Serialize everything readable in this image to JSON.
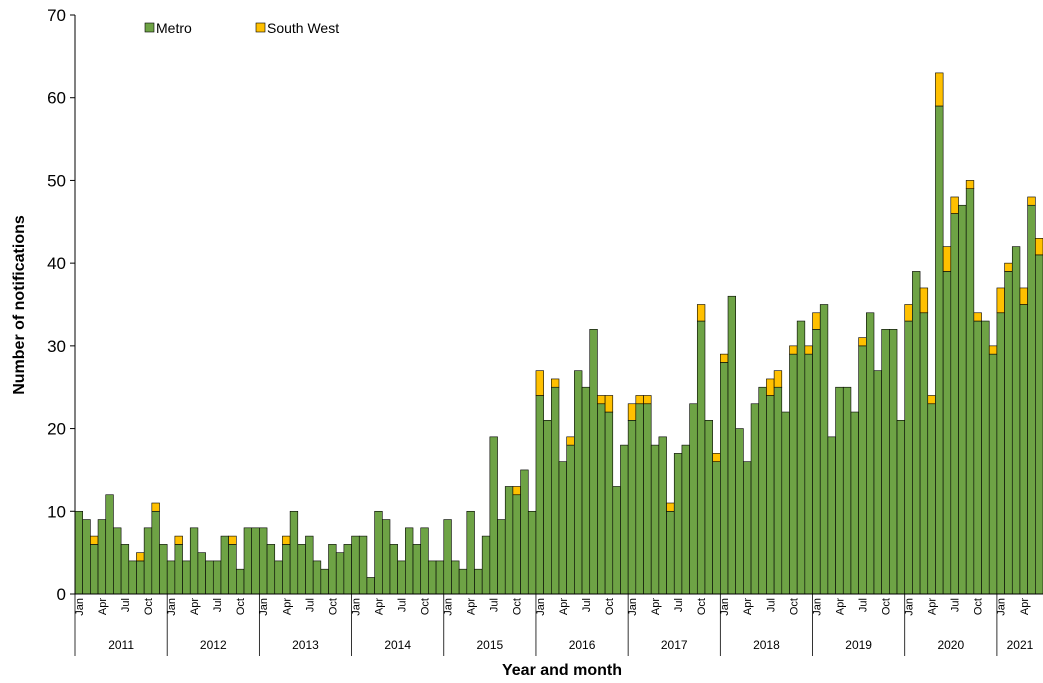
{
  "chart_data": {
    "type": "stacked-bar",
    "x_label": "Year and month",
    "y_label": "Number of notifications",
    "categories": [
      "Jan",
      null,
      null,
      "Apr",
      null,
      null,
      "Jul",
      null,
      null,
      "Oct",
      null,
      null,
      "Jan",
      null,
      null,
      "Apr",
      null,
      null,
      "Jul",
      null,
      null,
      "Oct",
      null,
      null,
      "Jan",
      null,
      null,
      "Apr",
      null,
      null,
      "Jul",
      null,
      null,
      "Oct",
      null,
      null,
      "Jan",
      null,
      null,
      "Apr",
      null,
      null,
      "Jul",
      null,
      null,
      "Oct",
      null,
      null,
      "Jan",
      null,
      null,
      "Apr",
      null,
      null,
      "Jul",
      null,
      null,
      "Oct",
      null,
      null,
      "Jan",
      null,
      null,
      "Apr",
      null,
      null,
      "Jul",
      null,
      null,
      "Oct",
      null,
      null,
      "Jan",
      null,
      null,
      "Apr",
      null,
      null,
      "Jul",
      null,
      null,
      "Oct",
      null,
      null,
      "Jan",
      null,
      null,
      "Apr",
      null,
      null,
      "Jul",
      null,
      null,
      "Oct",
      null,
      null,
      "Jan",
      null,
      null,
      "Apr",
      null,
      null,
      "Jul",
      null,
      null,
      "Oct",
      null,
      null,
      "Jan",
      null,
      null,
      "Apr",
      null,
      null,
      "Jul",
      null,
      null,
      "Oct",
      null,
      null,
      "Jan",
      null,
      null,
      "Apr",
      null,
      null
    ],
    "years": [
      "2011",
      "2012",
      "2013",
      "2014",
      "2015",
      "2016",
      "2017",
      "2018",
      "2019",
      "2020",
      "2021"
    ],
    "series": [
      {
        "name": "Metro",
        "color": "#6ea345",
        "values": [
          10,
          9,
          6,
          9,
          12,
          8,
          6,
          4,
          4,
          8,
          10,
          6,
          4,
          6,
          4,
          8,
          5,
          4,
          4,
          7,
          6,
          3,
          8,
          8,
          8,
          6,
          4,
          6,
          10,
          6,
          7,
          4,
          3,
          6,
          5,
          6,
          7,
          7,
          2,
          10,
          9,
          6,
          4,
          8,
          6,
          8,
          4,
          4,
          9,
          4,
          3,
          10,
          3,
          7,
          19,
          9,
          13,
          12,
          15,
          10,
          24,
          21,
          25,
          16,
          18,
          27,
          25,
          32,
          23,
          22,
          13,
          18,
          21,
          23,
          23,
          18,
          19,
          10,
          17,
          18,
          23,
          33,
          21,
          16,
          28,
          36,
          20,
          16,
          23,
          25,
          24,
          25,
          22,
          29,
          33,
          29,
          32,
          35,
          19,
          25,
          25,
          22,
          30,
          34,
          27,
          32,
          32,
          21,
          33,
          39,
          34,
          23,
          59,
          39,
          46,
          47,
          49,
          33,
          33,
          29,
          34,
          39,
          42,
          35,
          47,
          41
        ]
      },
      {
        "name": "South West",
        "color": "#ffc000",
        "values": [
          0,
          0,
          1,
          0,
          0,
          0,
          0,
          0,
          1,
          0,
          1,
          0,
          0,
          1,
          0,
          0,
          0,
          0,
          0,
          0,
          1,
          0,
          0,
          0,
          0,
          0,
          0,
          1,
          0,
          0,
          0,
          0,
          0,
          0,
          0,
          0,
          0,
          0,
          0,
          0,
          0,
          0,
          0,
          0,
          0,
          0,
          0,
          0,
          0,
          0,
          0,
          0,
          0,
          0,
          0,
          0,
          0,
          1,
          0,
          0,
          3,
          0,
          1,
          0,
          1,
          0,
          0,
          0,
          1,
          2,
          0,
          0,
          2,
          1,
          1,
          0,
          0,
          1,
          0,
          0,
          0,
          2,
          0,
          1,
          1,
          0,
          0,
          0,
          0,
          0,
          2,
          2,
          0,
          1,
          0,
          1,
          2,
          0,
          0,
          0,
          0,
          0,
          1,
          0,
          0,
          0,
          0,
          0,
          2,
          0,
          3,
          1,
          4,
          3,
          2,
          0,
          1,
          1,
          0,
          1,
          3,
          1,
          0,
          2,
          1,
          2
        ]
      }
    ],
    "ylim": [
      0,
      70
    ],
    "yticks": [
      0,
      10,
      20,
      30,
      40,
      50,
      60,
      70
    ],
    "grid": false
  }
}
